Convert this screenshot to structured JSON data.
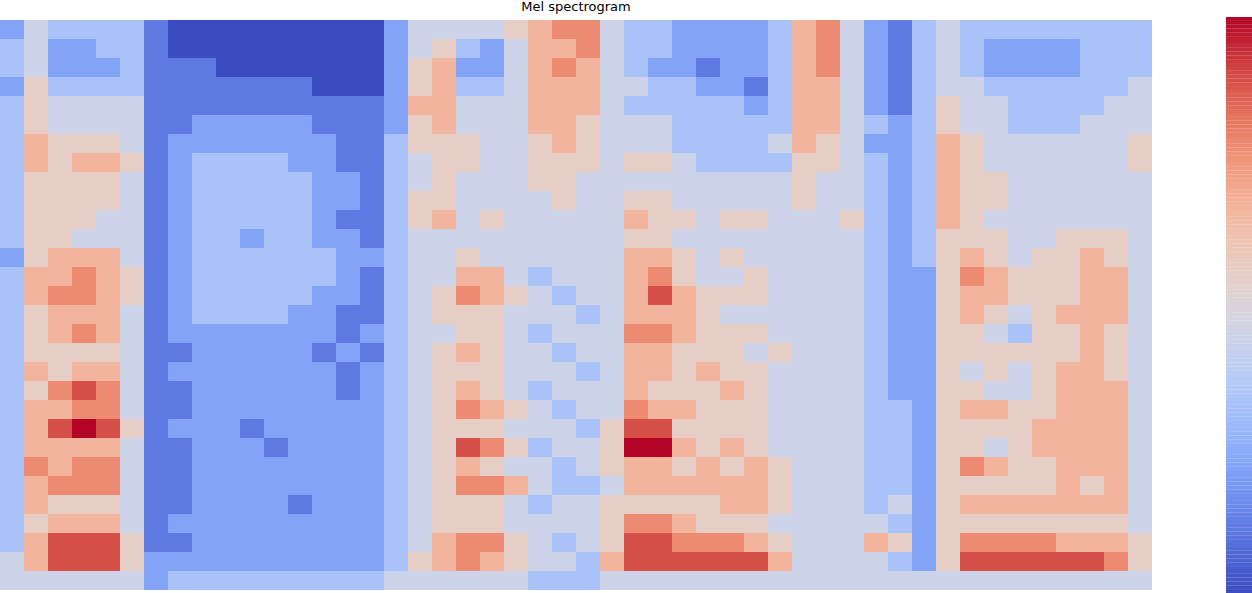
{
  "chart_data": {
    "type": "heatmap",
    "title": "Mel spectrogram",
    "tick_labels": false,
    "color": "coolwarm",
    "colorbar_range": [
      0,
      9
    ],
    "frames": [
      [
        2,
        3,
        3,
        2,
        3,
        3,
        3,
        3,
        3,
        3,
        3,
        3,
        2,
        3,
        3,
        3,
        3,
        3,
        3,
        3,
        3,
        3,
        3,
        3,
        3,
        3,
        3,
        3,
        4,
        4
      ],
      [
        4,
        4,
        4,
        5,
        5,
        5,
        6,
        6,
        5,
        5,
        5,
        5,
        5,
        6,
        6,
        5,
        5,
        5,
        6,
        5,
        6,
        6,
        6,
        7,
        6,
        6,
        5,
        6,
        6,
        4
      ],
      [
        3,
        2,
        2,
        3,
        4,
        4,
        5,
        5,
        5,
        5,
        5,
        5,
        6,
        6,
        7,
        6,
        6,
        5,
        5,
        7,
        6,
        8,
        6,
        6,
        7,
        5,
        6,
        8,
        8,
        4
      ],
      [
        3,
        2,
        2,
        3,
        4,
        4,
        5,
        6,
        5,
        5,
        5,
        4,
        6,
        7,
        7,
        6,
        7,
        5,
        6,
        8,
        7,
        9,
        6,
        7,
        7,
        5,
        6,
        8,
        8,
        4
      ],
      [
        3,
        3,
        2,
        3,
        4,
        4,
        5,
        6,
        5,
        5,
        4,
        4,
        6,
        6,
        6,
        6,
        6,
        5,
        6,
        7,
        7,
        8,
        6,
        7,
        7,
        5,
        6,
        8,
        8,
        4
      ],
      [
        3,
        3,
        3,
        3,
        4,
        4,
        4,
        5,
        4,
        4,
        4,
        4,
        4,
        5,
        5,
        4,
        4,
        4,
        4,
        4,
        4,
        5,
        4,
        4,
        4,
        4,
        4,
        5,
        5,
        4
      ],
      [
        1,
        1,
        1,
        1,
        1,
        1,
        1,
        1,
        1,
        1,
        1,
        1,
        1,
        1,
        1,
        1,
        1,
        1,
        1,
        1,
        1,
        1,
        1,
        1,
        1,
        1,
        1,
        1,
        2,
        2
      ],
      [
        0,
        0,
        1,
        1,
        1,
        1,
        2,
        2,
        2,
        2,
        2,
        2,
        2,
        2,
        2,
        2,
        2,
        1,
        2,
        1,
        1,
        2,
        1,
        1,
        1,
        1,
        2,
        1,
        2,
        3
      ],
      [
        0,
        0,
        1,
        1,
        1,
        2,
        2,
        3,
        3,
        3,
        3,
        3,
        3,
        3,
        3,
        3,
        2,
        2,
        2,
        2,
        2,
        2,
        2,
        2,
        2,
        2,
        2,
        2,
        2,
        3
      ],
      [
        0,
        0,
        0,
        1,
        1,
        2,
        2,
        3,
        3,
        3,
        3,
        3,
        3,
        3,
        3,
        3,
        2,
        2,
        2,
        2,
        2,
        2,
        2,
        2,
        2,
        2,
        2,
        2,
        2,
        3
      ],
      [
        0,
        0,
        0,
        1,
        1,
        2,
        2,
        3,
        3,
        3,
        3,
        2,
        3,
        3,
        3,
        3,
        2,
        2,
        2,
        2,
        2,
        1,
        2,
        2,
        2,
        2,
        2,
        2,
        2,
        3
      ],
      [
        0,
        0,
        0,
        1,
        1,
        2,
        2,
        3,
        3,
        3,
        3,
        3,
        3,
        3,
        3,
        3,
        2,
        2,
        2,
        2,
        2,
        2,
        1,
        2,
        2,
        2,
        2,
        2,
        2,
        3
      ],
      [
        0,
        0,
        0,
        1,
        1,
        2,
        2,
        2,
        3,
        3,
        3,
        3,
        3,
        3,
        3,
        2,
        2,
        2,
        2,
        2,
        2,
        2,
        2,
        2,
        2,
        1,
        2,
        2,
        2,
        3
      ],
      [
        0,
        0,
        0,
        0,
        1,
        1,
        2,
        2,
        2,
        2,
        2,
        2,
        3,
        3,
        2,
        2,
        2,
        1,
        2,
        2,
        2,
        2,
        2,
        2,
        2,
        2,
        2,
        2,
        2,
        3
      ],
      [
        0,
        0,
        0,
        0,
        1,
        1,
        1,
        1,
        2,
        2,
        1,
        2,
        2,
        2,
        2,
        1,
        1,
        2,
        1,
        1,
        2,
        2,
        2,
        2,
        2,
        2,
        2,
        2,
        2,
        3
      ],
      [
        0,
        0,
        0,
        0,
        1,
        1,
        1,
        1,
        1,
        1,
        1,
        1,
        2,
        1,
        1,
        1,
        2,
        1,
        2,
        2,
        2,
        2,
        2,
        2,
        2,
        2,
        2,
        2,
        2,
        3
      ],
      [
        2,
        2,
        2,
        2,
        2,
        2,
        3,
        3,
        3,
        3,
        3,
        3,
        3,
        3,
        3,
        3,
        3,
        3,
        3,
        3,
        3,
        3,
        3,
        3,
        3,
        3,
        3,
        3,
        3,
        4
      ],
      [
        4,
        4,
        5,
        5,
        6,
        5,
        5,
        4,
        4,
        5,
        5,
        4,
        4,
        4,
        4,
        4,
        4,
        4,
        4,
        4,
        4,
        4,
        4,
        4,
        4,
        4,
        4,
        4,
        5,
        4
      ],
      [
        4,
        5,
        6,
        6,
        6,
        6,
        5,
        5,
        5,
        5,
        6,
        4,
        4,
        4,
        5,
        5,
        4,
        5,
        5,
        5,
        5,
        5,
        5,
        5,
        5,
        5,
        5,
        6,
        6,
        4
      ],
      [
        4,
        3,
        2,
        3,
        4,
        4,
        5,
        5,
        4,
        4,
        4,
        4,
        5,
        6,
        7,
        5,
        5,
        6,
        5,
        6,
        7,
        5,
        8,
        6,
        7,
        5,
        5,
        7,
        7,
        4
      ],
      [
        4,
        2,
        2,
        3,
        4,
        4,
        4,
        4,
        4,
        4,
        5,
        4,
        4,
        6,
        6,
        5,
        5,
        5,
        5,
        5,
        6,
        5,
        7,
        5,
        7,
        5,
        5,
        7,
        6,
        4
      ],
      [
        5,
        4,
        4,
        4,
        4,
        4,
        4,
        4,
        4,
        4,
        4,
        4,
        4,
        4,
        5,
        4,
        4,
        4,
        4,
        4,
        5,
        4,
        5,
        4,
        6,
        4,
        4,
        5,
        5,
        4
      ],
      [
        6,
        6,
        6,
        6,
        6,
        6,
        5,
        5,
        5,
        4,
        4,
        4,
        4,
        3,
        4,
        4,
        3,
        4,
        4,
        3,
        4,
        4,
        3,
        4,
        4,
        3,
        4,
        4,
        4,
        3
      ],
      [
        7,
        6,
        7,
        6,
        6,
        6,
        6,
        5,
        5,
        5,
        4,
        4,
        4,
        4,
        3,
        4,
        4,
        3,
        4,
        4,
        3,
        4,
        4,
        3,
        3,
        4,
        4,
        3,
        4,
        3
      ],
      [
        7,
        7,
        6,
        6,
        6,
        5,
        5,
        5,
        4,
        4,
        4,
        4,
        4,
        4,
        4,
        3,
        4,
        4,
        3,
        4,
        4,
        3,
        4,
        4,
        3,
        4,
        4,
        4,
        3,
        3
      ],
      [
        4,
        4,
        4,
        4,
        4,
        4,
        4,
        4,
        4,
        4,
        4,
        4,
        4,
        4,
        4,
        4,
        4,
        4,
        4,
        4,
        4,
        5,
        5,
        5,
        4,
        5,
        5,
        5,
        6,
        4
      ],
      [
        3,
        3,
        3,
        4,
        3,
        4,
        4,
        5,
        4,
        5,
        6,
        5,
        6,
        6,
        6,
        6,
        7,
        6,
        6,
        6,
        7,
        8,
        9,
        6,
        6,
        5,
        7,
        8,
        8,
        4
      ],
      [
        3,
        3,
        2,
        3,
        3,
        4,
        4,
        5,
        4,
        5,
        5,
        5,
        6,
        7,
        8,
        6,
        7,
        6,
        6,
        5,
        6,
        8,
        9,
        6,
        6,
        5,
        7,
        8,
        8,
        4
      ],
      [
        2,
        2,
        2,
        3,
        3,
        3,
        3,
        4,
        4,
        4,
        5,
        4,
        5,
        5,
        6,
        6,
        6,
        5,
        5,
        5,
        6,
        5,
        6,
        5,
        6,
        5,
        6,
        7,
        8,
        4
      ],
      [
        2,
        2,
        1,
        2,
        3,
        3,
        3,
        3,
        4,
        4,
        4,
        4,
        4,
        4,
        5,
        5,
        5,
        5,
        6,
        5,
        5,
        5,
        5,
        6,
        6,
        5,
        5,
        7,
        8,
        4
      ],
      [
        2,
        2,
        2,
        2,
        3,
        3,
        3,
        3,
        4,
        4,
        5,
        4,
        5,
        4,
        5,
        4,
        5,
        5,
        5,
        6,
        5,
        5,
        6,
        5,
        6,
        6,
        5,
        7,
        8,
        4
      ],
      [
        2,
        2,
        2,
        1,
        2,
        3,
        3,
        3,
        4,
        4,
        5,
        4,
        4,
        5,
        5,
        4,
        5,
        4,
        5,
        5,
        5,
        5,
        5,
        6,
        6,
        6,
        5,
        6,
        8,
        4
      ],
      [
        3,
        3,
        3,
        3,
        3,
        3,
        4,
        3,
        4,
        4,
        4,
        4,
        4,
        4,
        4,
        4,
        4,
        5,
        4,
        4,
        4,
        4,
        4,
        5,
        5,
        5,
        4,
        5,
        6,
        4
      ],
      [
        6,
        6,
        6,
        6,
        6,
        6,
        6,
        5,
        5,
        5,
        4,
        4,
        4,
        4,
        4,
        4,
        4,
        4,
        4,
        4,
        4,
        4,
        4,
        4,
        4,
        4,
        4,
        4,
        4,
        4
      ],
      [
        7,
        7,
        7,
        6,
        6,
        6,
        5,
        5,
        4,
        4,
        4,
        4,
        4,
        4,
        4,
        4,
        4,
        4,
        4,
        4,
        4,
        4,
        4,
        4,
        4,
        4,
        4,
        4,
        4,
        4
      ],
      [
        4,
        4,
        4,
        4,
        4,
        4,
        4,
        4,
        4,
        4,
        5,
        4,
        4,
        4,
        4,
        4,
        4,
        4,
        4,
        4,
        4,
        4,
        4,
        4,
        4,
        4,
        4,
        4,
        4,
        4
      ],
      [
        2,
        2,
        2,
        2,
        2,
        3,
        2,
        3,
        3,
        3,
        3,
        3,
        3,
        3,
        3,
        3,
        3,
        3,
        3,
        3,
        3,
        3,
        3,
        3,
        3,
        3,
        4,
        6,
        4,
        4
      ],
      [
        1,
        1,
        1,
        1,
        1,
        2,
        2,
        2,
        2,
        2,
        2,
        2,
        2,
        2,
        2,
        2,
        2,
        2,
        2,
        2,
        3,
        3,
        3,
        3,
        3,
        4,
        3,
        5,
        3,
        4
      ],
      [
        3,
        3,
        3,
        3,
        3,
        3,
        3,
        3,
        3,
        3,
        3,
        3,
        3,
        2,
        2,
        2,
        2,
        2,
        2,
        2,
        2,
        2,
        2,
        2,
        2,
        2,
        2,
        2,
        2,
        4
      ],
      [
        4,
        4,
        4,
        4,
        5,
        5,
        6,
        6,
        6,
        6,
        6,
        5,
        5,
        5,
        5,
        5,
        5,
        5,
        5,
        5,
        5,
        5,
        5,
        5,
        5,
        5,
        5,
        5,
        5,
        4
      ],
      [
        3,
        3,
        3,
        4,
        4,
        4,
        5,
        5,
        5,
        5,
        5,
        5,
        6,
        7,
        6,
        6,
        5,
        5,
        4,
        5,
        6,
        5,
        5,
        7,
        5,
        6,
        5,
        7,
        8,
        4
      ],
      [
        3,
        2,
        2,
        3,
        4,
        4,
        4,
        4,
        5,
        5,
        4,
        5,
        5,
        6,
        6,
        5,
        4,
        5,
        5,
        4,
        6,
        5,
        4,
        6,
        5,
        6,
        5,
        7,
        8,
        4
      ],
      [
        3,
        2,
        2,
        3,
        3,
        3,
        4,
        4,
        4,
        4,
        4,
        4,
        4,
        5,
        5,
        4,
        3,
        5,
        4,
        4,
        5,
        5,
        5,
        5,
        5,
        6,
        5,
        7,
        8,
        4
      ],
      [
        3,
        2,
        2,
        3,
        3,
        3,
        4,
        4,
        4,
        4,
        4,
        4,
        5,
        5,
        5,
        5,
        5,
        5,
        5,
        5,
        5,
        6,
        6,
        5,
        5,
        6,
        5,
        7,
        8,
        4
      ],
      [
        3,
        2,
        2,
        3,
        3,
        3,
        4,
        4,
        4,
        4,
        4,
        5,
        5,
        5,
        5,
        6,
        5,
        5,
        6,
        6,
        6,
        6,
        6,
        6,
        6,
        6,
        5,
        6,
        8,
        4
      ],
      [
        3,
        3,
        3,
        3,
        3,
        4,
        4,
        4,
        4,
        4,
        4,
        5,
        6,
        6,
        6,
        6,
        6,
        6,
        6,
        6,
        6,
        6,
        6,
        6,
        5,
        6,
        5,
        6,
        8,
        4
      ],
      [
        3,
        3,
        3,
        3,
        4,
        4,
        4,
        4,
        4,
        4,
        4,
        5,
        5,
        6,
        6,
        6,
        5,
        5,
        5,
        6,
        6,
        6,
        6,
        6,
        6,
        6,
        5,
        6,
        7,
        4
      ],
      [
        3,
        3,
        3,
        4,
        4,
        4,
        5,
        5,
        4,
        4,
        4,
        4,
        4,
        4,
        4,
        4,
        4,
        4,
        4,
        4,
        4,
        4,
        4,
        4,
        4,
        4,
        4,
        5,
        5,
        4
      ]
    ]
  }
}
